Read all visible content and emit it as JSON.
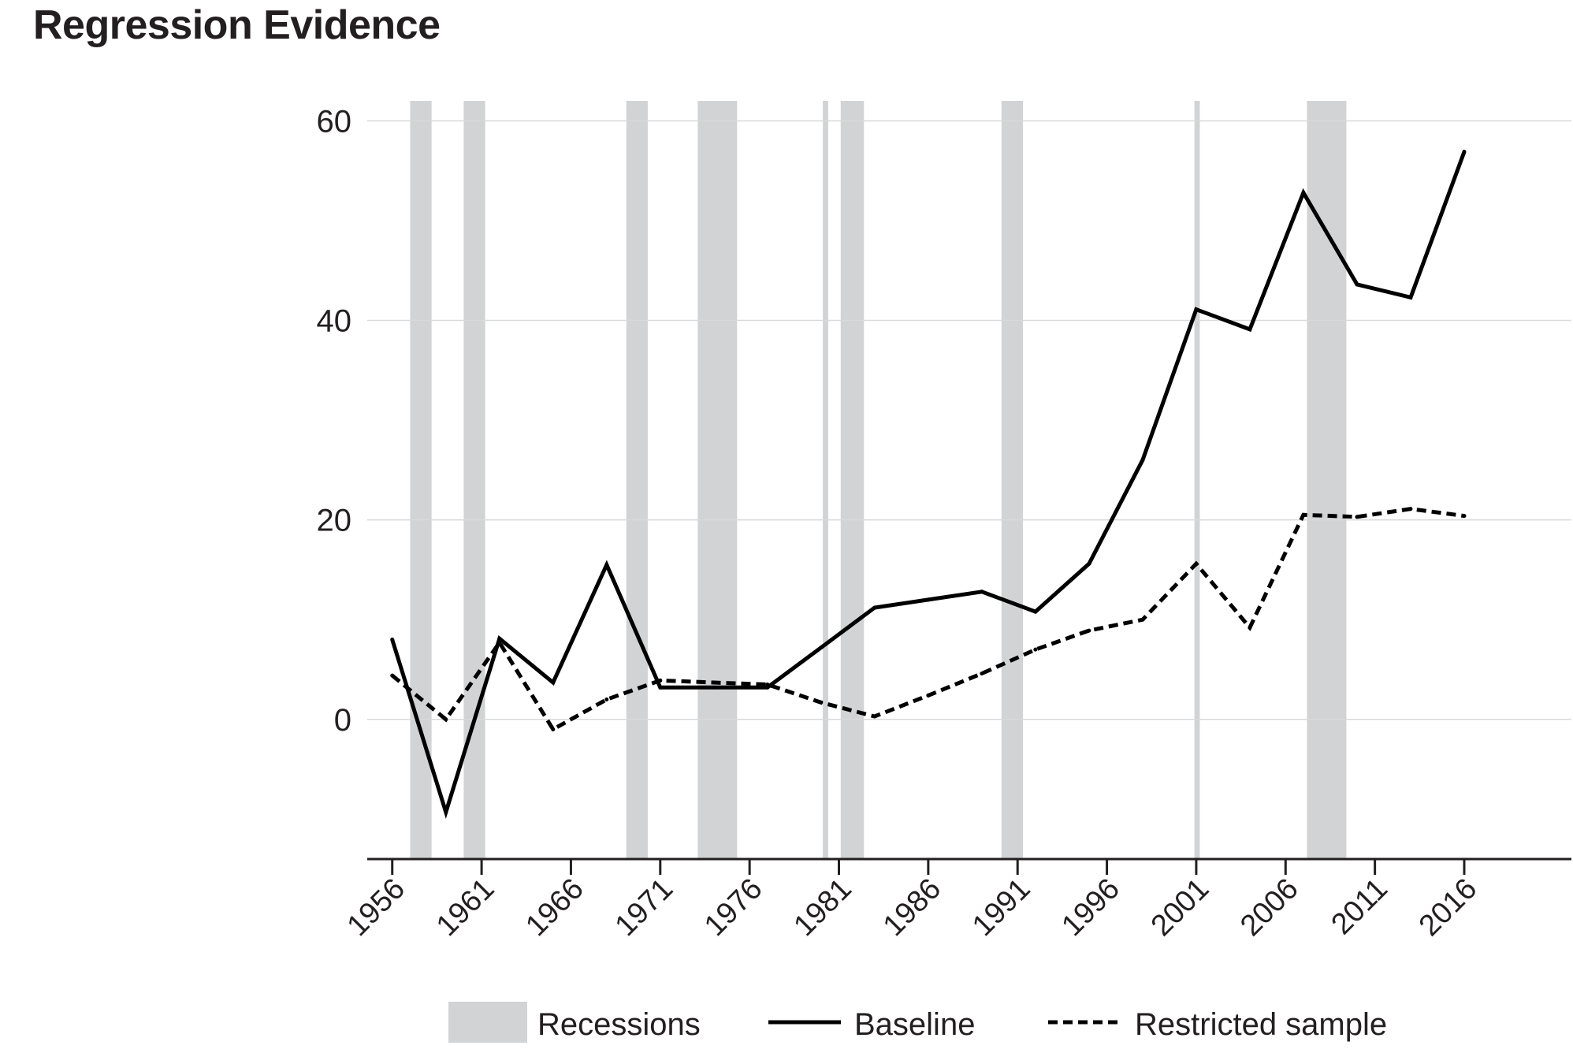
{
  "chart_data": {
    "type": "line",
    "title": "Regression Evidence",
    "xlabel": "",
    "ylabel": "",
    "xlim": [
      1954.6,
      2022.0
    ],
    "ylim": [
      -14,
      62
    ],
    "y_ticks": [
      0,
      20,
      40,
      60
    ],
    "x_ticks": [
      1956,
      1961,
      1966,
      1971,
      1976,
      1981,
      1986,
      1991,
      1996,
      2001,
      2006,
      2011,
      2016
    ],
    "grid": "horizontal",
    "legend_position": "bottom",
    "recessions": [
      [
        1957.0,
        1958.2
      ],
      [
        1960.0,
        1961.2
      ],
      [
        1969.1,
        1970.3
      ],
      [
        1973.1,
        1975.3
      ],
      [
        1980.1,
        1980.4
      ],
      [
        1981.1,
        1982.4
      ],
      [
        1990.1,
        1991.3
      ],
      [
        2000.9,
        2001.2
      ],
      [
        2007.2,
        2009.4
      ]
    ],
    "series": [
      {
        "name": "Baseline",
        "style": "solid",
        "x": [
          1956,
          1959,
          1962,
          1965,
          1968,
          1971,
          1974,
          1977,
          1980,
          1983,
          1986,
          1989,
          1992,
          1995,
          1998,
          2001,
          2004,
          2007,
          2010,
          2013,
          2016
        ],
        "y": [
          8.0,
          -9.3,
          8.1,
          3.7,
          15.5,
          3.2,
          3.2,
          3.2,
          7.2,
          11.2,
          12.0,
          12.8,
          10.8,
          15.6,
          26.0,
          41.1,
          39.1,
          52.8,
          43.6,
          42.3,
          56.9
        ]
      },
      {
        "name": "Restricted sample",
        "style": "dashed",
        "x": [
          1956,
          1959,
          1962,
          1965,
          1968,
          1971,
          1974,
          1977,
          1980,
          1983,
          1986,
          1989,
          1992,
          1995,
          1998,
          2001,
          2004,
          2007,
          2010,
          2013,
          2016
        ],
        "y": [
          4.4,
          0.0,
          7.7,
          -1.0,
          2.0,
          3.9,
          3.7,
          3.5,
          1.7,
          0.3,
          2.4,
          4.6,
          7.0,
          8.9,
          10.0,
          15.6,
          9.2,
          20.5,
          20.3,
          21.1,
          20.4
        ]
      }
    ],
    "legend": {
      "recessions_label": "Recessions",
      "baseline_label": "Baseline",
      "restricted_label": "Restricted sample"
    },
    "colors": {
      "line": "#000000",
      "recession": "#d1d3d4",
      "grid": "#d9d9d9",
      "axis": "#231f20",
      "text": "#231f20"
    }
  }
}
